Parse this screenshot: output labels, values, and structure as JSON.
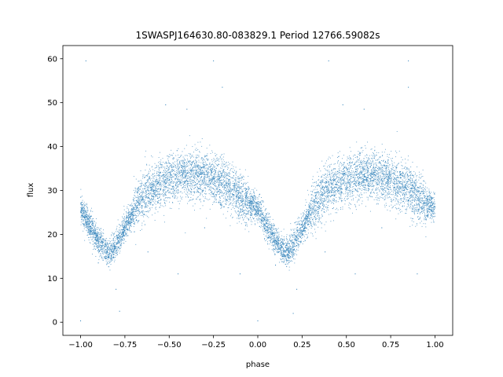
{
  "chart_data": {
    "type": "scatter",
    "title": "1SWASPJ164630.80-083829.1 Period 12766.59082s",
    "xlabel": "phase",
    "ylabel": "flux",
    "xlim": [
      -1.1,
      1.1
    ],
    "ylim": [
      -3,
      63
    ],
    "x_ticks": [
      -1.0,
      -0.75,
      -0.5,
      -0.25,
      0.0,
      0.25,
      0.5,
      0.75,
      1.0
    ],
    "x_tick_labels": [
      "−1.00",
      "−0.75",
      "−0.50",
      "−0.25",
      "0.00",
      "0.25",
      "0.50",
      "0.75",
      "1.00"
    ],
    "y_ticks": [
      0,
      10,
      20,
      30,
      40,
      50,
      60
    ],
    "y_tick_labels": [
      "0",
      "10",
      "20",
      "30",
      "40",
      "50",
      "60"
    ],
    "grid": false,
    "point_color": "#1f77b4",
    "series": [
      {
        "x_range": [
          -1.0,
          1.0
        ],
        "profile_phase": [
          0.0,
          0.05,
          0.1,
          0.16,
          0.2,
          0.25,
          0.3,
          0.35,
          0.4,
          0.45,
          0.5,
          0.55,
          0.6,
          0.65,
          0.7,
          0.75,
          0.8,
          0.85,
          0.9,
          0.95,
          1.0
        ],
        "profile_flux": [
          26.0,
          22.0,
          18.5,
          15.5,
          17.5,
          21.5,
          25.5,
          28.5,
          30.5,
          31.5,
          32.5,
          33.0,
          33.5,
          33.5,
          33.0,
          32.5,
          31.5,
          30.0,
          28.5,
          27.0,
          26.0
        ],
        "scatter_spread": 1.6,
        "point_count": 9000,
        "outliers": [
          {
            "x": -0.97,
            "y": 59.5
          },
          {
            "x": -0.25,
            "y": 59.5
          },
          {
            "x": 0.4,
            "y": 59.5
          },
          {
            "x": 0.85,
            "y": 59.5
          },
          {
            "x": -0.2,
            "y": 53.5
          },
          {
            "x": 0.85,
            "y": 53.5
          },
          {
            "x": -0.52,
            "y": 49.5
          },
          {
            "x": 0.48,
            "y": 49.5
          },
          {
            "x": -0.4,
            "y": 48.5
          },
          {
            "x": 0.6,
            "y": 48.5
          },
          {
            "x": -1.0,
            "y": 0.3
          },
          {
            "x": 0.0,
            "y": 0.3
          },
          {
            "x": -0.78,
            "y": 2.5
          },
          {
            "x": 0.2,
            "y": 2.0
          },
          {
            "x": -0.8,
            "y": 7.5
          },
          {
            "x": 0.22,
            "y": 7.5
          },
          {
            "x": -0.45,
            "y": 11.0
          },
          {
            "x": 0.55,
            "y": 11.0
          },
          {
            "x": -0.9,
            "y": 13.5
          },
          {
            "x": 0.1,
            "y": 13.0
          },
          {
            "x": -0.62,
            "y": 16.0
          },
          {
            "x": 0.38,
            "y": 16.0
          },
          {
            "x": -0.7,
            "y": 22.5
          },
          {
            "x": 0.3,
            "y": 22.5
          },
          {
            "x": -0.3,
            "y": 21.5
          },
          {
            "x": 0.7,
            "y": 21.5
          },
          {
            "x": 0.9,
            "y": 11.0
          },
          {
            "x": -0.1,
            "y": 11.0
          }
        ]
      }
    ]
  }
}
